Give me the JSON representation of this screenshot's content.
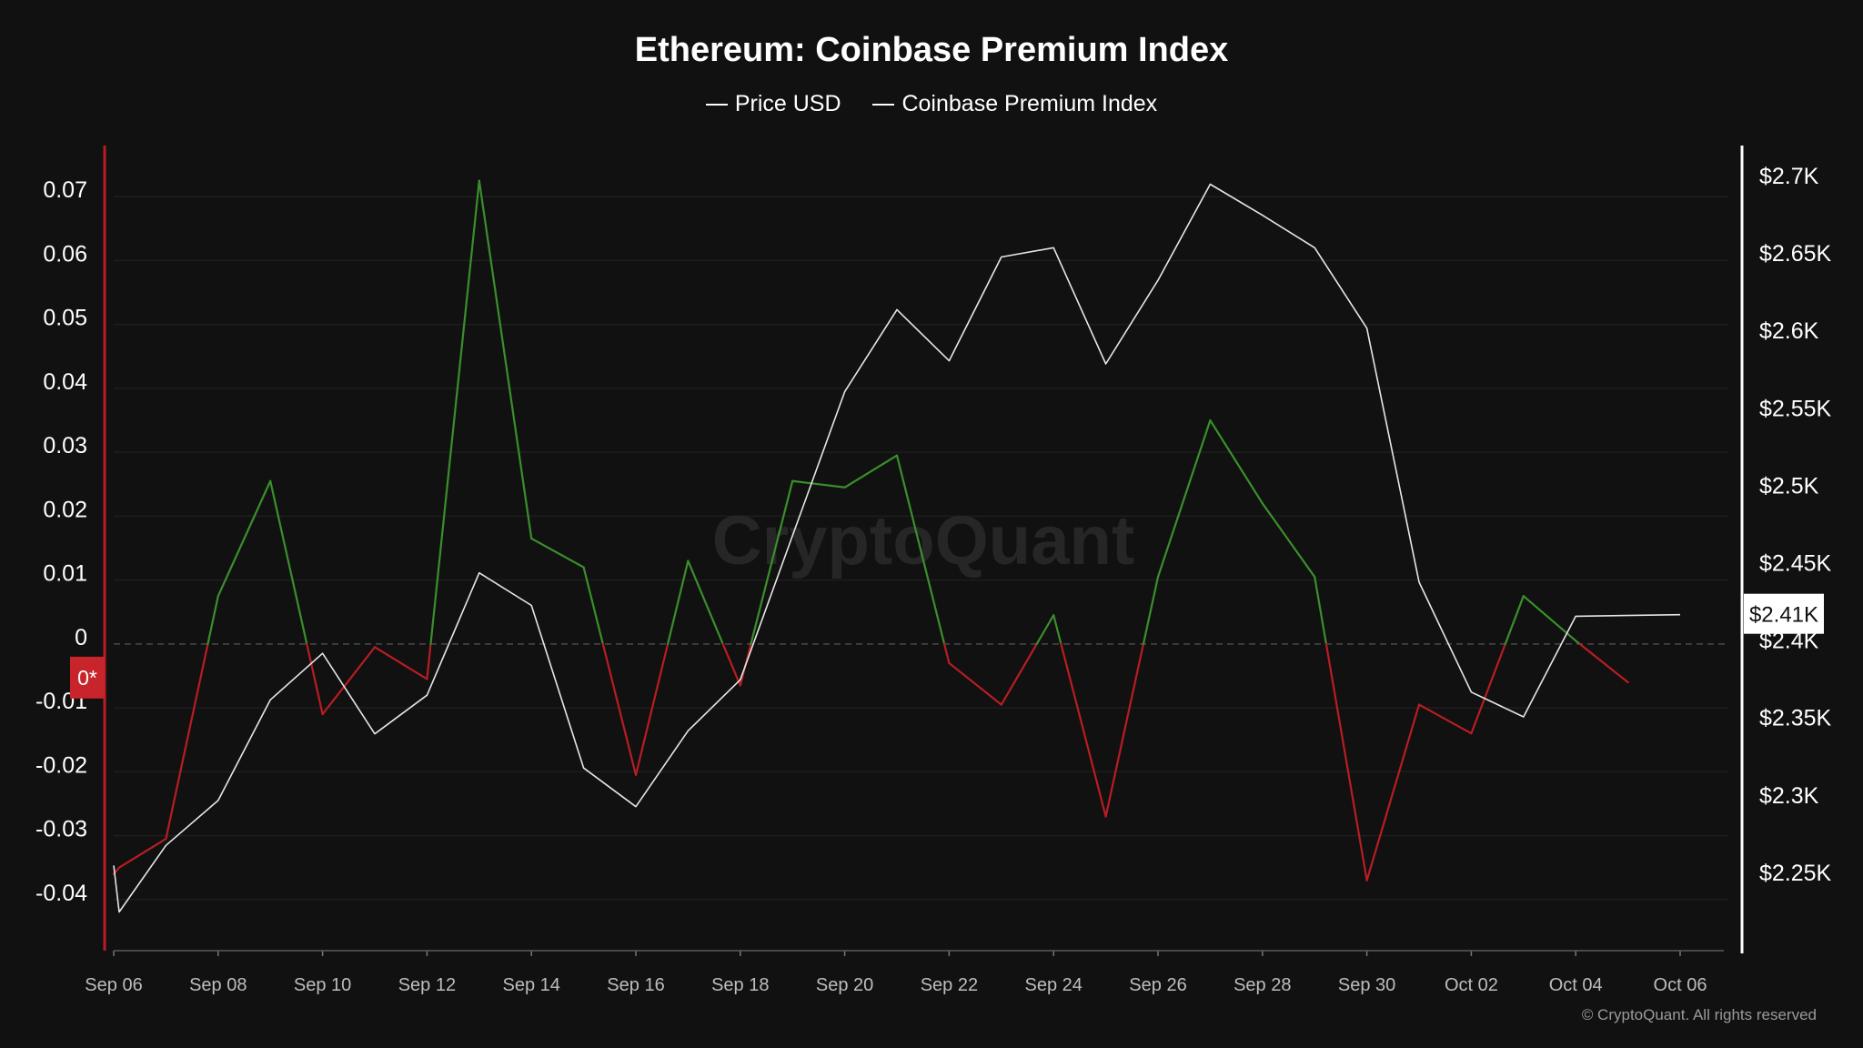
{
  "chart_data": {
    "type": "line",
    "title": "Ethereum: Coinbase Premium Index",
    "watermark": "CryptoQuant",
    "copyright": "© CryptoQuant. All rights reserved",
    "legend": [
      "Price USD",
      "Coinbase Premium Index"
    ],
    "legend_placement": "top-center",
    "grid": true,
    "x": [
      "Sep 06",
      "Sep 07",
      "Sep 08",
      "Sep 09",
      "Sep 10",
      "Sep 11",
      "Sep 12",
      "Sep 13",
      "Sep 14",
      "Sep 15",
      "Sep 16",
      "Sep 17",
      "Sep 18",
      "Sep 19",
      "Sep 20",
      "Sep 21",
      "Sep 22",
      "Sep 23",
      "Sep 24",
      "Sep 25",
      "Sep 26",
      "Sep 27",
      "Sep 28",
      "Sep 29",
      "Sep 30",
      "Oct 01",
      "Oct 02",
      "Oct 03",
      "Oct 04",
      "Oct 05",
      "Oct 06"
    ],
    "x_tick_labels": [
      "Sep 06",
      "Sep 08",
      "Sep 10",
      "Sep 12",
      "Sep 14",
      "Sep 16",
      "Sep 18",
      "Sep 20",
      "Sep 22",
      "Sep 24",
      "Sep 26",
      "Sep 28",
      "Sep 30",
      "Oct 02",
      "Oct 04",
      "Oct 06"
    ],
    "y_left": {
      "ticks": [
        0.07,
        0.06,
        0.05,
        0.04,
        0.03,
        0.02,
        0.01,
        0,
        -0.01,
        -0.02,
        -0.03,
        -0.04
      ],
      "tick_labels": [
        "0.07",
        "0.06",
        "0.05",
        "0.04",
        "0.03",
        "0.02",
        "0.01",
        "0",
        "-0.01",
        "-0.02",
        "-0.03",
        "-0.04"
      ],
      "range": [
        -0.048,
        0.078
      ],
      "zero_marker": "0*"
    },
    "y_right": {
      "ticks": [
        2700,
        2650,
        2600,
        2550,
        2500,
        2450,
        2400,
        2350,
        2300,
        2250
      ],
      "tick_labels": [
        "$2.7K",
        "$2.65K",
        "$2.6K",
        "$2.55K",
        "$2.5K",
        "$2.45K",
        "$2.4K",
        "$2.35K",
        "$2.3K",
        "$2.25K"
      ],
      "range": [
        2200,
        2720
      ],
      "current_value_label": "$2.41K"
    },
    "series": [
      {
        "name": "Price USD",
        "axis": "right",
        "color": "#e6e6e6",
        "points": [
          {
            "x": "Sep 06",
            "y": 2255
          },
          {
            "x": "Sep 06",
            "y": 2225
          },
          {
            "x": "Sep 07",
            "y": 2268
          },
          {
            "x": "Sep 08",
            "y": 2297
          },
          {
            "x": "Sep 09",
            "y": 2362
          },
          {
            "x": "Sep 10",
            "y": 2392
          },
          {
            "x": "Sep 11",
            "y": 2340
          },
          {
            "x": "Sep 12",
            "y": 2365
          },
          {
            "x": "Sep 13",
            "y": 2444
          },
          {
            "x": "Sep 14",
            "y": 2423
          },
          {
            "x": "Sep 15",
            "y": 2318
          },
          {
            "x": "Sep 16",
            "y": 2293
          },
          {
            "x": "Sep 17",
            "y": 2342
          },
          {
            "x": "Sep 18",
            "y": 2375
          },
          {
            "x": "Sep 19",
            "y": 2468
          },
          {
            "x": "Sep 20",
            "y": 2561
          },
          {
            "x": "Sep 21",
            "y": 2614
          },
          {
            "x": "Sep 22",
            "y": 2581
          },
          {
            "x": "Sep 23",
            "y": 2648
          },
          {
            "x": "Sep 24",
            "y": 2654
          },
          {
            "x": "Sep 25",
            "y": 2579
          },
          {
            "x": "Sep 26",
            "y": 2633
          },
          {
            "x": "Sep 27",
            "y": 2695
          },
          {
            "x": "Sep 28",
            "y": 2675
          },
          {
            "x": "Sep 29",
            "y": 2654
          },
          {
            "x": "Sep 30",
            "y": 2602
          },
          {
            "x": "Oct 01",
            "y": 2438
          },
          {
            "x": "Oct 02",
            "y": 2367
          },
          {
            "x": "Oct 03",
            "y": 2351
          },
          {
            "x": "Oct 04",
            "y": 2416
          },
          {
            "x": "Oct 06",
            "y": 2417
          }
        ]
      },
      {
        "name": "Coinbase Premium Index",
        "axis": "left",
        "positive_color": "#3a8f2c",
        "negative_color": "#b81d23",
        "points": [
          {
            "x": "Sep 06",
            "y": -0.036
          },
          {
            "x": "Sep 06",
            "y": -0.035
          },
          {
            "x": "Sep 07",
            "y": -0.0305
          },
          {
            "x": "Sep 08",
            "y": 0.0075
          },
          {
            "x": "Sep 09",
            "y": 0.0255
          },
          {
            "x": "Sep 10",
            "y": -0.011
          },
          {
            "x": "Sep 11",
            "y": -0.0005
          },
          {
            "x": "Sep 12",
            "y": -0.0055
          },
          {
            "x": "Sep 13",
            "y": 0.0725
          },
          {
            "x": "Sep 14",
            "y": 0.0165
          },
          {
            "x": "Sep 15",
            "y": 0.012
          },
          {
            "x": "Sep 16",
            "y": -0.0205
          },
          {
            "x": "Sep 17",
            "y": 0.013
          },
          {
            "x": "Sep 18",
            "y": -0.0065
          },
          {
            "x": "Sep 19",
            "y": 0.0255
          },
          {
            "x": "Sep 20",
            "y": 0.0245
          },
          {
            "x": "Sep 21",
            "y": 0.0295
          },
          {
            "x": "Sep 22",
            "y": -0.003
          },
          {
            "x": "Sep 23",
            "y": -0.0095
          },
          {
            "x": "Sep 24",
            "y": 0.0045
          },
          {
            "x": "Sep 25",
            "y": -0.027
          },
          {
            "x": "Sep 26",
            "y": 0.0105
          },
          {
            "x": "Sep 27",
            "y": 0.035
          },
          {
            "x": "Sep 28",
            "y": 0.022
          },
          {
            "x": "Sep 29",
            "y": 0.0105
          },
          {
            "x": "Sep 30",
            "y": -0.037
          },
          {
            "x": "Oct 01",
            "y": -0.0095
          },
          {
            "x": "Oct 02",
            "y": -0.014
          },
          {
            "x": "Oct 03",
            "y": 0.0075
          },
          {
            "x": "Oct 04",
            "y": 0.0005
          },
          {
            "x": "Oct 05",
            "y": -0.006
          }
        ]
      }
    ]
  }
}
